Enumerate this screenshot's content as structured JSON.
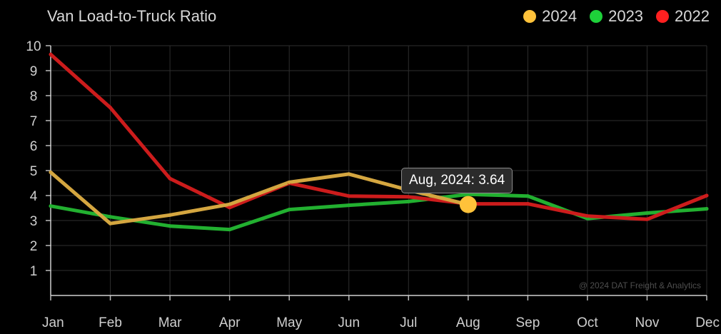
{
  "chart_data": {
    "type": "line",
    "title": "Van Load-to-Truck Ratio",
    "categories": [
      "Jan",
      "Feb",
      "Mar",
      "Apr",
      "May",
      "Jun",
      "Jul",
      "Aug",
      "Sep",
      "Oct",
      "Nov",
      "Dec"
    ],
    "ylim": [
      0,
      10
    ],
    "yticks": [
      1,
      2,
      3,
      4,
      5,
      6,
      7,
      8,
      9,
      10
    ],
    "grid": true,
    "legend_position": "top-right",
    "series": [
      {
        "name": "2024",
        "color": "#ffc23a",
        "line_color": "#d4a640",
        "values": [
          4.93,
          2.88,
          3.22,
          3.65,
          4.53,
          4.86,
          4.22,
          3.64,
          null,
          null,
          null,
          null
        ]
      },
      {
        "name": "2023",
        "color": "#1ed13a",
        "line_color": "#22b030",
        "values": [
          3.58,
          3.15,
          2.78,
          2.64,
          3.44,
          3.61,
          3.76,
          4.05,
          3.98,
          3.08,
          3.3,
          3.47
        ]
      },
      {
        "name": "2022",
        "color": "#ff2020",
        "line_color": "#cc1c1c",
        "values": [
          9.65,
          7.52,
          4.68,
          3.52,
          4.5,
          3.98,
          3.95,
          3.67,
          3.67,
          3.18,
          3.05,
          4.0
        ]
      }
    ],
    "tooltip": {
      "text": "Aug, 2024: 3.64",
      "series": "2024",
      "index": 7
    },
    "watermark": "@ 2024 DAT Freight & Analytics"
  }
}
